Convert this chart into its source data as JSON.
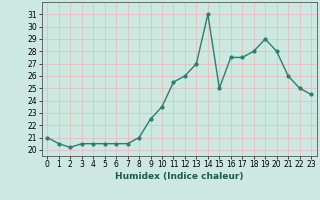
{
  "x": [
    0,
    1,
    2,
    3,
    4,
    5,
    6,
    7,
    8,
    9,
    10,
    11,
    12,
    13,
    14,
    15,
    16,
    17,
    18,
    19,
    20,
    21,
    22,
    23
  ],
  "y": [
    21.0,
    20.5,
    20.2,
    20.5,
    20.5,
    20.5,
    20.5,
    20.5,
    21.0,
    22.5,
    23.5,
    25.5,
    26.0,
    27.0,
    31.0,
    25.0,
    27.5,
    27.5,
    28.0,
    29.0,
    28.0,
    26.0,
    25.0,
    24.5
  ],
  "line_color": "#2e7d6e",
  "marker": "o",
  "marker_size": 2.0,
  "linewidth": 1.0,
  "xlabel": "Humidex (Indice chaleur)",
  "ylim": [
    19.5,
    32.0
  ],
  "xlim": [
    -0.5,
    23.5
  ],
  "yticks": [
    20,
    21,
    22,
    23,
    24,
    25,
    26,
    27,
    28,
    29,
    30,
    31
  ],
  "xticks": [
    0,
    1,
    2,
    3,
    4,
    5,
    6,
    7,
    8,
    9,
    10,
    11,
    12,
    13,
    14,
    15,
    16,
    17,
    18,
    19,
    20,
    21,
    22,
    23
  ],
  "bg_color": "#cce8e0",
  "grid_color": "#e8b8b8",
  "tick_fontsize": 5.5,
  "xlabel_fontsize": 6.5
}
